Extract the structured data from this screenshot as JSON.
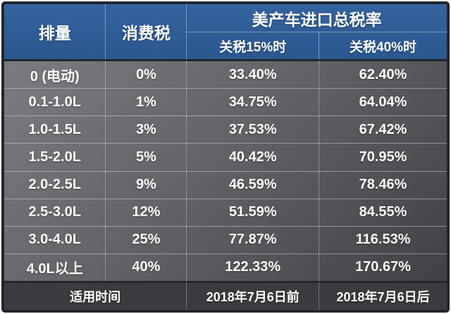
{
  "table": {
    "header": {
      "col_displacement": "排量",
      "col_consumption_tax": "消费税",
      "col_total_rate_group": "美产车进口总税率",
      "col_tariff_15": "关税15%时",
      "col_tariff_40": "关税40%时"
    },
    "rows": [
      {
        "displacement": "0 (电动)",
        "consumption_tax": "0%",
        "rate_15": "33.40%",
        "rate_40": "62.40%"
      },
      {
        "displacement": "0.1-1.0L",
        "consumption_tax": "1%",
        "rate_15": "34.75%",
        "rate_40": "64.04%"
      },
      {
        "displacement": "1.0-1.5L",
        "consumption_tax": "3%",
        "rate_15": "37.53%",
        "rate_40": "67.42%"
      },
      {
        "displacement": "1.5-2.0L",
        "consumption_tax": "5%",
        "rate_15": "40.42%",
        "rate_40": "70.95%"
      },
      {
        "displacement": "2.0-2.5L",
        "consumption_tax": "9%",
        "rate_15": "46.59%",
        "rate_40": "78.46%"
      },
      {
        "displacement": "2.5-3.0L",
        "consumption_tax": "12%",
        "rate_15": "51.59%",
        "rate_40": "84.55%"
      },
      {
        "displacement": "3.0-4.0L",
        "consumption_tax": "25%",
        "rate_15": "77.87%",
        "rate_40": "116.53%"
      },
      {
        "displacement": "4.0L以上",
        "consumption_tax": "40%",
        "rate_15": "122.33%",
        "rate_40": "170.67%"
      }
    ],
    "footer": {
      "label": "适用时间",
      "before": "2018年7月6日前",
      "after": "2018年7月6日后"
    },
    "colors": {
      "header_blue": "#2e5c9a",
      "frame_dark": "#23262e",
      "body_gray_light": "#7b7b80",
      "body_gray_dark": "#404045",
      "footer_bg": "#3a3a3f",
      "text": "#ffffff"
    }
  },
  "chart_data": {
    "type": "table",
    "title": "美产车进口总税率",
    "columns": [
      "排量",
      "消费税",
      "关税15%时",
      "关税40%时"
    ],
    "rows": [
      [
        "0 (电动)",
        "0%",
        "33.40%",
        "62.40%"
      ],
      [
        "0.1-1.0L",
        "1%",
        "34.75%",
        "64.04%"
      ],
      [
        "1.0-1.5L",
        "3%",
        "37.53%",
        "67.42%"
      ],
      [
        "1.5-2.0L",
        "5%",
        "40.42%",
        "70.95%"
      ],
      [
        "2.0-2.5L",
        "9%",
        "46.59%",
        "78.46%"
      ],
      [
        "2.5-3.0L",
        "12%",
        "51.59%",
        "84.55%"
      ],
      [
        "3.0-4.0L",
        "25%",
        "77.87%",
        "116.53%"
      ],
      [
        "4.0L以上",
        "40%",
        "122.33%",
        "170.67%"
      ]
    ],
    "rate_15_values": [
      33.4,
      34.75,
      37.53,
      40.42,
      46.59,
      51.59,
      77.87,
      122.33
    ],
    "rate_40_values": [
      62.4,
      64.04,
      67.42,
      70.95,
      78.46,
      84.55,
      116.53,
      170.67
    ],
    "consumption_tax_values": [
      0,
      1,
      3,
      5,
      9,
      12,
      25,
      40
    ],
    "footer": [
      "适用时间",
      "2018年7月6日前",
      "2018年7月6日后"
    ]
  }
}
